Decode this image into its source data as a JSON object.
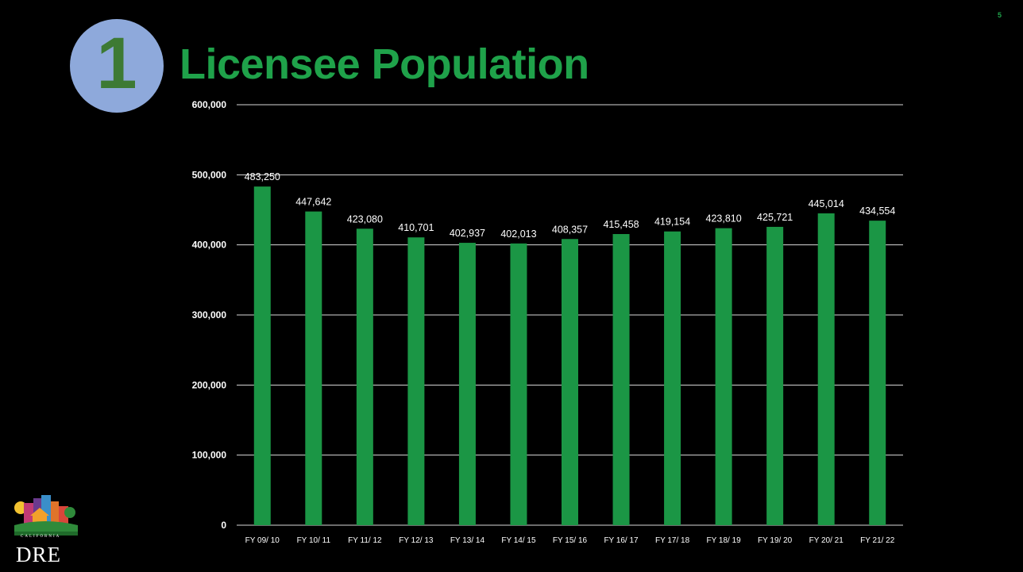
{
  "slide": {
    "page_number": "5",
    "badge_number": "1",
    "title": "Licensee Population",
    "logo_text": "DRE",
    "logo_subtext": "CALIFORNIA"
  },
  "colors": {
    "background": "#000000",
    "bar": "#1b9645",
    "title": "#1fa24a",
    "badge": "#8ea9db",
    "badge_number": "#3d7a34",
    "text": "#ffffff",
    "gridline": "#d9d9d9"
  },
  "chart_data": {
    "type": "bar",
    "categories": [
      "FY 09/ 10",
      "FY 10/ 11",
      "FY 11/ 12",
      "FY 12/ 13",
      "FY 13/ 14",
      "FY 14/ 15",
      "FY 15/ 16",
      "FY 16/ 17",
      "FY 17/ 18",
      "FY 18/ 19",
      "FY 19/ 20",
      "FY 20/ 21",
      "FY 21/ 22"
    ],
    "values": [
      483250,
      447642,
      423080,
      410701,
      402937,
      402013,
      408357,
      415458,
      419154,
      423810,
      425721,
      445014,
      434554
    ],
    "value_labels": [
      "483,250",
      "447,642",
      "423,080",
      "410,701",
      "402,937",
      "402,013",
      "408,357",
      "415,458",
      "419,154",
      "423,810",
      "425,721",
      "445,014",
      "434,554"
    ],
    "yticks": [
      0,
      100000,
      200000,
      300000,
      400000,
      500000,
      600000
    ],
    "ytick_labels": [
      "0",
      "100,000",
      "200,000",
      "300,000",
      "400,000",
      "500,000",
      "600,000"
    ],
    "ylim": [
      0,
      600000
    ],
    "grid": true,
    "title": "",
    "xlabel": "",
    "ylabel": ""
  }
}
